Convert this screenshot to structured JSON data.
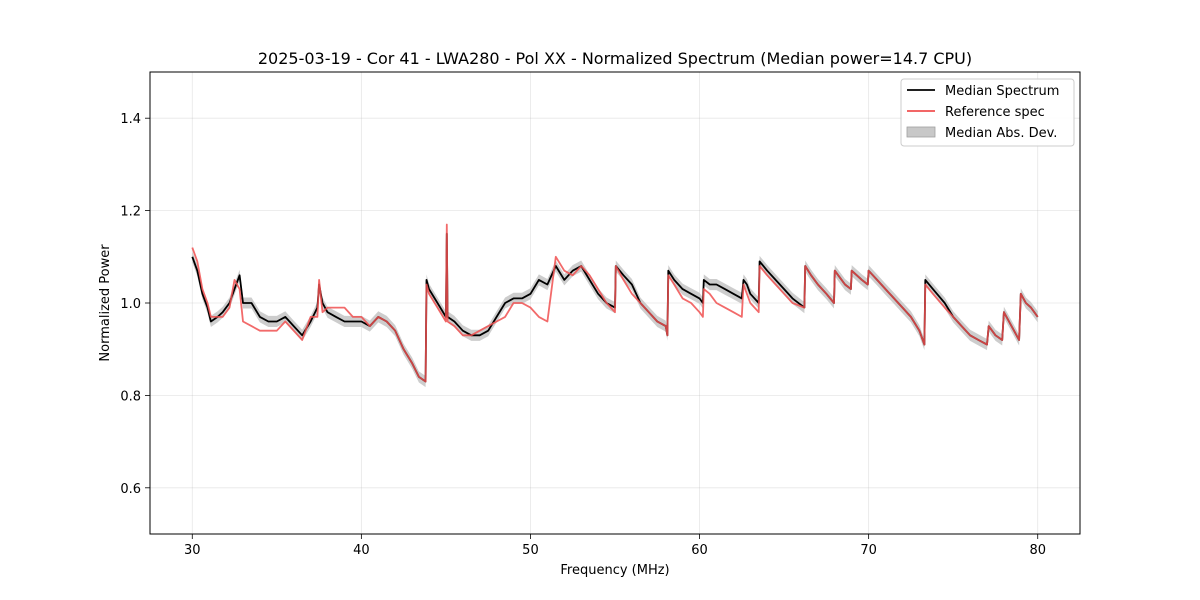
{
  "chart_data": {
    "type": "line",
    "title": "2025-03-19 - Cor 41 - LWA280 - Pol XX - Normalized Spectrum (Median power=14.7 CPU)",
    "xlabel": "Frequency (MHz)",
    "ylabel": "Normalized Power",
    "xlim": [
      27.5,
      82.5
    ],
    "ylim": [
      0.5,
      1.5
    ],
    "xticks": [
      30,
      40,
      50,
      60,
      70,
      80
    ],
    "xtick_labels": [
      "30",
      "40",
      "50",
      "60",
      "70",
      "80"
    ],
    "yticks": [
      0.6,
      0.8,
      1.0,
      1.2,
      1.4
    ],
    "ytick_labels": [
      "0.6",
      "0.8",
      "1.0",
      "1.2",
      "1.4"
    ],
    "grid": true,
    "legend_position": "top-right",
    "legend": [
      {
        "label": "Median Spectrum",
        "kind": "line",
        "color": "#000000"
      },
      {
        "label": "Reference spec",
        "kind": "line",
        "color": "#f05050"
      },
      {
        "label": "Median Abs. Dev.",
        "kind": "patch",
        "color": "#c8c8c8"
      }
    ],
    "series": [
      {
        "name": "Median Spectrum",
        "color": "#000000",
        "x": [
          30.0,
          30.3,
          30.6,
          30.9,
          31.1,
          31.5,
          31.8,
          32.2,
          32.5,
          32.8,
          33.0,
          33.5,
          34.0,
          34.5,
          35.0,
          35.5,
          36.0,
          36.5,
          37.0,
          37.4,
          37.5,
          37.7,
          38.0,
          38.5,
          39.0,
          39.5,
          40.0,
          40.5,
          41.0,
          41.5,
          42.0,
          42.5,
          43.0,
          43.4,
          43.8,
          43.85,
          44.0,
          44.5,
          45.0,
          45.05,
          45.1,
          45.5,
          46.0,
          46.5,
          47.0,
          47.5,
          48.0,
          48.5,
          49.0,
          49.5,
          50.0,
          50.5,
          51.0,
          51.5,
          52.0,
          52.5,
          53.0,
          53.5,
          54.0,
          54.5,
          55.0,
          55.05,
          55.5,
          56.0,
          56.5,
          57.0,
          57.5,
          58.0,
          58.1,
          58.15,
          58.5,
          59.0,
          59.5,
          60.0,
          60.2,
          60.25,
          60.6,
          61.0,
          61.5,
          62.0,
          62.5,
          62.6,
          62.8,
          63.0,
          63.5,
          63.55,
          64.0,
          64.5,
          65.0,
          65.5,
          66.2,
          66.25,
          66.6,
          67.0,
          67.5,
          67.95,
          68.0,
          68.6,
          68.95,
          69.0,
          69.6,
          69.95,
          70.0,
          70.5,
          71.0,
          71.5,
          72.0,
          72.5,
          73.0,
          73.3,
          73.35,
          73.8,
          74.5,
          75.0,
          75.5,
          76.0,
          76.5,
          77.0,
          77.1,
          77.5,
          77.9,
          78.0,
          78.3,
          78.9,
          79.0,
          79.3,
          79.6,
          80.0
        ],
        "y": [
          1.1,
          1.07,
          1.02,
          0.99,
          0.96,
          0.97,
          0.98,
          1.0,
          1.03,
          1.06,
          1.0,
          1.0,
          0.97,
          0.96,
          0.96,
          0.97,
          0.95,
          0.93,
          0.96,
          0.99,
          1.04,
          1.0,
          0.98,
          0.97,
          0.96,
          0.96,
          0.96,
          0.95,
          0.97,
          0.96,
          0.94,
          0.9,
          0.87,
          0.84,
          0.83,
          1.05,
          1.03,
          1.0,
          0.97,
          1.15,
          0.97,
          0.96,
          0.94,
          0.93,
          0.93,
          0.94,
          0.97,
          1.0,
          1.01,
          1.01,
          1.02,
          1.05,
          1.04,
          1.08,
          1.05,
          1.07,
          1.08,
          1.05,
          1.02,
          1.0,
          0.99,
          1.08,
          1.06,
          1.04,
          1.0,
          0.98,
          0.96,
          0.95,
          0.93,
          1.07,
          1.05,
          1.03,
          1.02,
          1.01,
          1.0,
          1.05,
          1.04,
          1.04,
          1.03,
          1.02,
          1.01,
          1.05,
          1.04,
          1.02,
          1.0,
          1.09,
          1.07,
          1.05,
          1.03,
          1.01,
          0.99,
          1.08,
          1.06,
          1.04,
          1.02,
          1.0,
          1.07,
          1.04,
          1.03,
          1.07,
          1.05,
          1.04,
          1.07,
          1.05,
          1.03,
          1.01,
          0.99,
          0.97,
          0.94,
          0.91,
          1.05,
          1.03,
          1.0,
          0.97,
          0.95,
          0.93,
          0.92,
          0.91,
          0.95,
          0.93,
          0.92,
          0.98,
          0.96,
          0.92,
          1.02,
          1.0,
          0.99,
          0.97
        ]
      },
      {
        "name": "Reference spec",
        "color": "#f05050",
        "x": [
          30.0,
          30.3,
          30.6,
          30.9,
          31.1,
          31.5,
          31.8,
          32.2,
          32.5,
          32.8,
          33.0,
          33.5,
          34.0,
          34.5,
          35.0,
          35.5,
          36.0,
          36.5,
          37.0,
          37.4,
          37.5,
          37.7,
          38.0,
          38.5,
          39.0,
          39.5,
          40.0,
          40.5,
          41.0,
          41.5,
          42.0,
          42.5,
          43.0,
          43.4,
          43.8,
          43.85,
          44.0,
          44.5,
          45.0,
          45.05,
          45.1,
          45.5,
          46.0,
          46.5,
          47.0,
          47.5,
          48.0,
          48.5,
          49.0,
          49.5,
          50.0,
          50.5,
          51.0,
          51.5,
          52.0,
          52.5,
          53.0,
          53.5,
          54.0,
          54.5,
          55.0,
          55.05,
          55.5,
          56.0,
          56.5,
          57.0,
          57.5,
          58.0,
          58.1,
          58.15,
          58.5,
          59.0,
          59.5,
          60.0,
          60.2,
          60.25,
          60.6,
          61.0,
          61.5,
          62.0,
          62.5,
          62.6,
          62.8,
          63.0,
          63.5,
          63.55,
          64.0,
          64.5,
          65.0,
          65.5,
          66.2,
          66.25,
          66.6,
          67.0,
          67.5,
          67.95,
          68.0,
          68.6,
          68.95,
          69.0,
          69.6,
          69.95,
          70.0,
          70.5,
          71.0,
          71.5,
          72.0,
          72.5,
          73.0,
          73.3,
          73.35,
          73.8,
          74.5,
          75.0,
          75.5,
          76.0,
          76.5,
          77.0,
          77.1,
          77.5,
          77.9,
          78.0,
          78.3,
          78.9,
          79.0,
          79.3,
          79.6,
          80.0
        ],
        "y": [
          1.12,
          1.09,
          1.03,
          1.0,
          0.97,
          0.97,
          0.97,
          0.99,
          1.05,
          1.03,
          0.96,
          0.95,
          0.94,
          0.94,
          0.94,
          0.96,
          0.94,
          0.92,
          0.97,
          0.97,
          1.05,
          0.98,
          0.99,
          0.99,
          0.99,
          0.97,
          0.97,
          0.95,
          0.97,
          0.96,
          0.94,
          0.9,
          0.87,
          0.84,
          0.83,
          1.04,
          1.02,
          0.99,
          0.96,
          1.17,
          0.96,
          0.95,
          0.93,
          0.93,
          0.94,
          0.95,
          0.96,
          0.97,
          1.0,
          1.0,
          0.99,
          0.97,
          0.96,
          1.1,
          1.07,
          1.06,
          1.08,
          1.06,
          1.03,
          1.0,
          0.98,
          1.08,
          1.05,
          1.02,
          1.0,
          0.98,
          0.96,
          0.95,
          0.93,
          1.06,
          1.04,
          1.01,
          1.0,
          0.98,
          0.97,
          1.03,
          1.02,
          1.0,
          0.99,
          0.98,
          0.97,
          1.04,
          1.02,
          1.0,
          0.98,
          1.08,
          1.06,
          1.04,
          1.02,
          1.0,
          0.99,
          1.08,
          1.06,
          1.04,
          1.02,
          1.0,
          1.07,
          1.04,
          1.03,
          1.07,
          1.05,
          1.04,
          1.07,
          1.05,
          1.03,
          1.01,
          0.99,
          0.97,
          0.94,
          0.91,
          1.04,
          1.02,
          0.99,
          0.97,
          0.95,
          0.93,
          0.92,
          0.91,
          0.95,
          0.93,
          0.92,
          0.98,
          0.96,
          0.92,
          1.02,
          1.0,
          0.99,
          0.97
        ]
      }
    ],
    "mad_band": {
      "name": "Median Abs. Dev.",
      "color": "#c8c8c8",
      "half_width": 0.012
    }
  }
}
